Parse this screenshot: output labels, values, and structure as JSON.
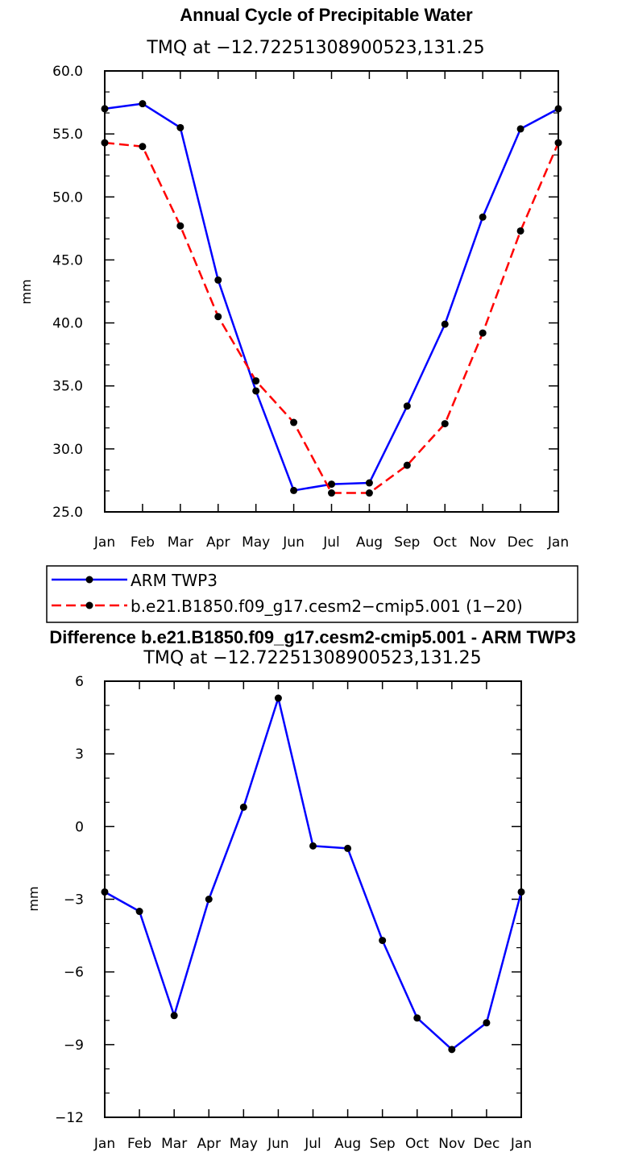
{
  "chart_data": [
    {
      "type": "line",
      "title": "Annual Cycle of Precipitable Water",
      "subtitle": "TMQ  at  −12.72251308900523,131.25",
      "xlabel": "",
      "ylabel": "mm",
      "categories": [
        "Jan",
        "Feb",
        "Mar",
        "Apr",
        "May",
        "Jun",
        "Jul",
        "Aug",
        "Sep",
        "Oct",
        "Nov",
        "Dec",
        "Jan"
      ],
      "ylim": [
        25.0,
        60.0
      ],
      "yticks": [
        25.0,
        30.0,
        35.0,
        40.0,
        45.0,
        50.0,
        55.0,
        60.0
      ],
      "ytick_labels": [
        "25.0",
        "30.0",
        "35.0",
        "40.0",
        "45.0",
        "50.0",
        "55.0",
        "60.0"
      ],
      "legend_position": "bottom",
      "series": [
        {
          "name": "ARM TWP3",
          "color": "#0000ff",
          "dash": "solid",
          "values": [
            57.0,
            57.4,
            55.5,
            43.4,
            34.6,
            26.7,
            27.2,
            27.3,
            33.4,
            39.9,
            48.4,
            55.4,
            57.0
          ]
        },
        {
          "name": "b.e21.B1850.f09_g17.cesm2−cmip5.001 (1−20)",
          "color": "#ff0000",
          "dash": "dashed",
          "values": [
            54.3,
            54.0,
            47.7,
            40.5,
            35.4,
            32.1,
            26.5,
            26.5,
            28.7,
            32.0,
            39.2,
            47.3,
            54.3
          ]
        }
      ]
    },
    {
      "type": "line",
      "title": "Difference b.e21.B1850.f09_g17.cesm2-cmip5.001 - ARM TWP3",
      "subtitle": "TMQ  at  −12.72251308900523,131.25",
      "xlabel": "",
      "ylabel": "mm",
      "categories": [
        "Jan",
        "Feb",
        "Mar",
        "Apr",
        "May",
        "Jun",
        "Jul",
        "Aug",
        "Sep",
        "Oct",
        "Nov",
        "Dec",
        "Jan"
      ],
      "ylim": [
        -12,
        6
      ],
      "yticks": [
        -12,
        -9,
        -6,
        -3,
        0,
        3,
        6
      ],
      "ytick_labels": [
        "−12",
        "−9",
        "−6",
        "−3",
        "0",
        "3",
        "6"
      ],
      "series": [
        {
          "name": "Difference",
          "color": "#0000ff",
          "dash": "solid",
          "values": [
            -2.7,
            -3.5,
            -7.8,
            -3.0,
            0.8,
            5.3,
            -0.8,
            -0.9,
            -4.7,
            -7.9,
            -9.2,
            -8.1,
            -2.7
          ]
        }
      ]
    }
  ]
}
